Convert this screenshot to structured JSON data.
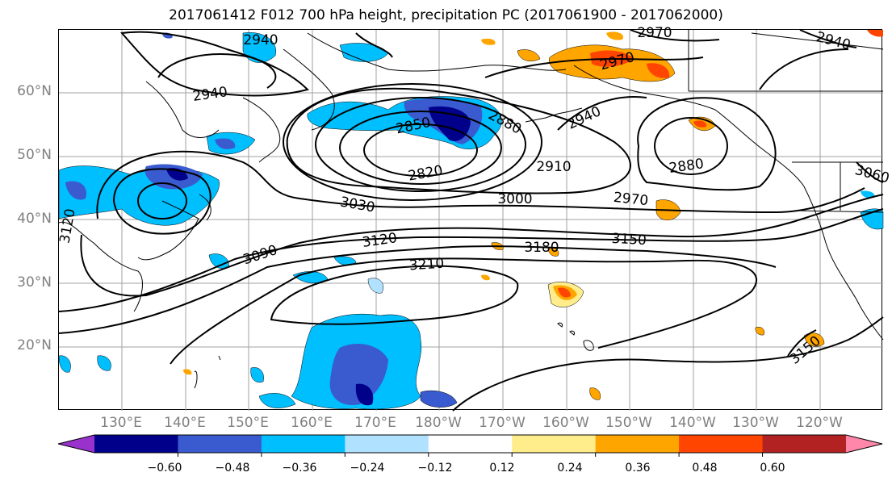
{
  "title": "2017061412 F012 700 hPa height, precipitation PC (2017061900 - 2017062000)",
  "lat_labels": [
    "60°N",
    "50°N",
    "40°N",
    "30°N",
    "20°N"
  ],
  "lon_labels": [
    "130°E",
    "140°E",
    "150°E",
    "160°E",
    "170°E",
    "180°W",
    "170°W",
    "160°W",
    "150°W",
    "140°W",
    "130°W",
    "120°W"
  ],
  "contour_labels": [
    "2940",
    "2970",
    "2940",
    "2940",
    "2970",
    "2940",
    "2850",
    "2880",
    "2820",
    "2910",
    "2880",
    "3060",
    "3030",
    "3000",
    "2970",
    "3120",
    "3120",
    "3090",
    "3150",
    "3180",
    "3210",
    "3150"
  ],
  "colorbar": {
    "ticks": [
      "−0.60",
      "−0.48",
      "−0.36",
      "−0.24",
      "−0.12",
      "0.12",
      "0.24",
      "0.36",
      "0.48",
      "0.60"
    ],
    "colors": [
      "#9932cc",
      "#00008b",
      "#3a5bcf",
      "#00bfff",
      "#b0e2ff",
      "#ffffff",
      "#ffec8b",
      "#ffa500",
      "#ff4500",
      "#b22222",
      "#ff88aa"
    ]
  }
}
